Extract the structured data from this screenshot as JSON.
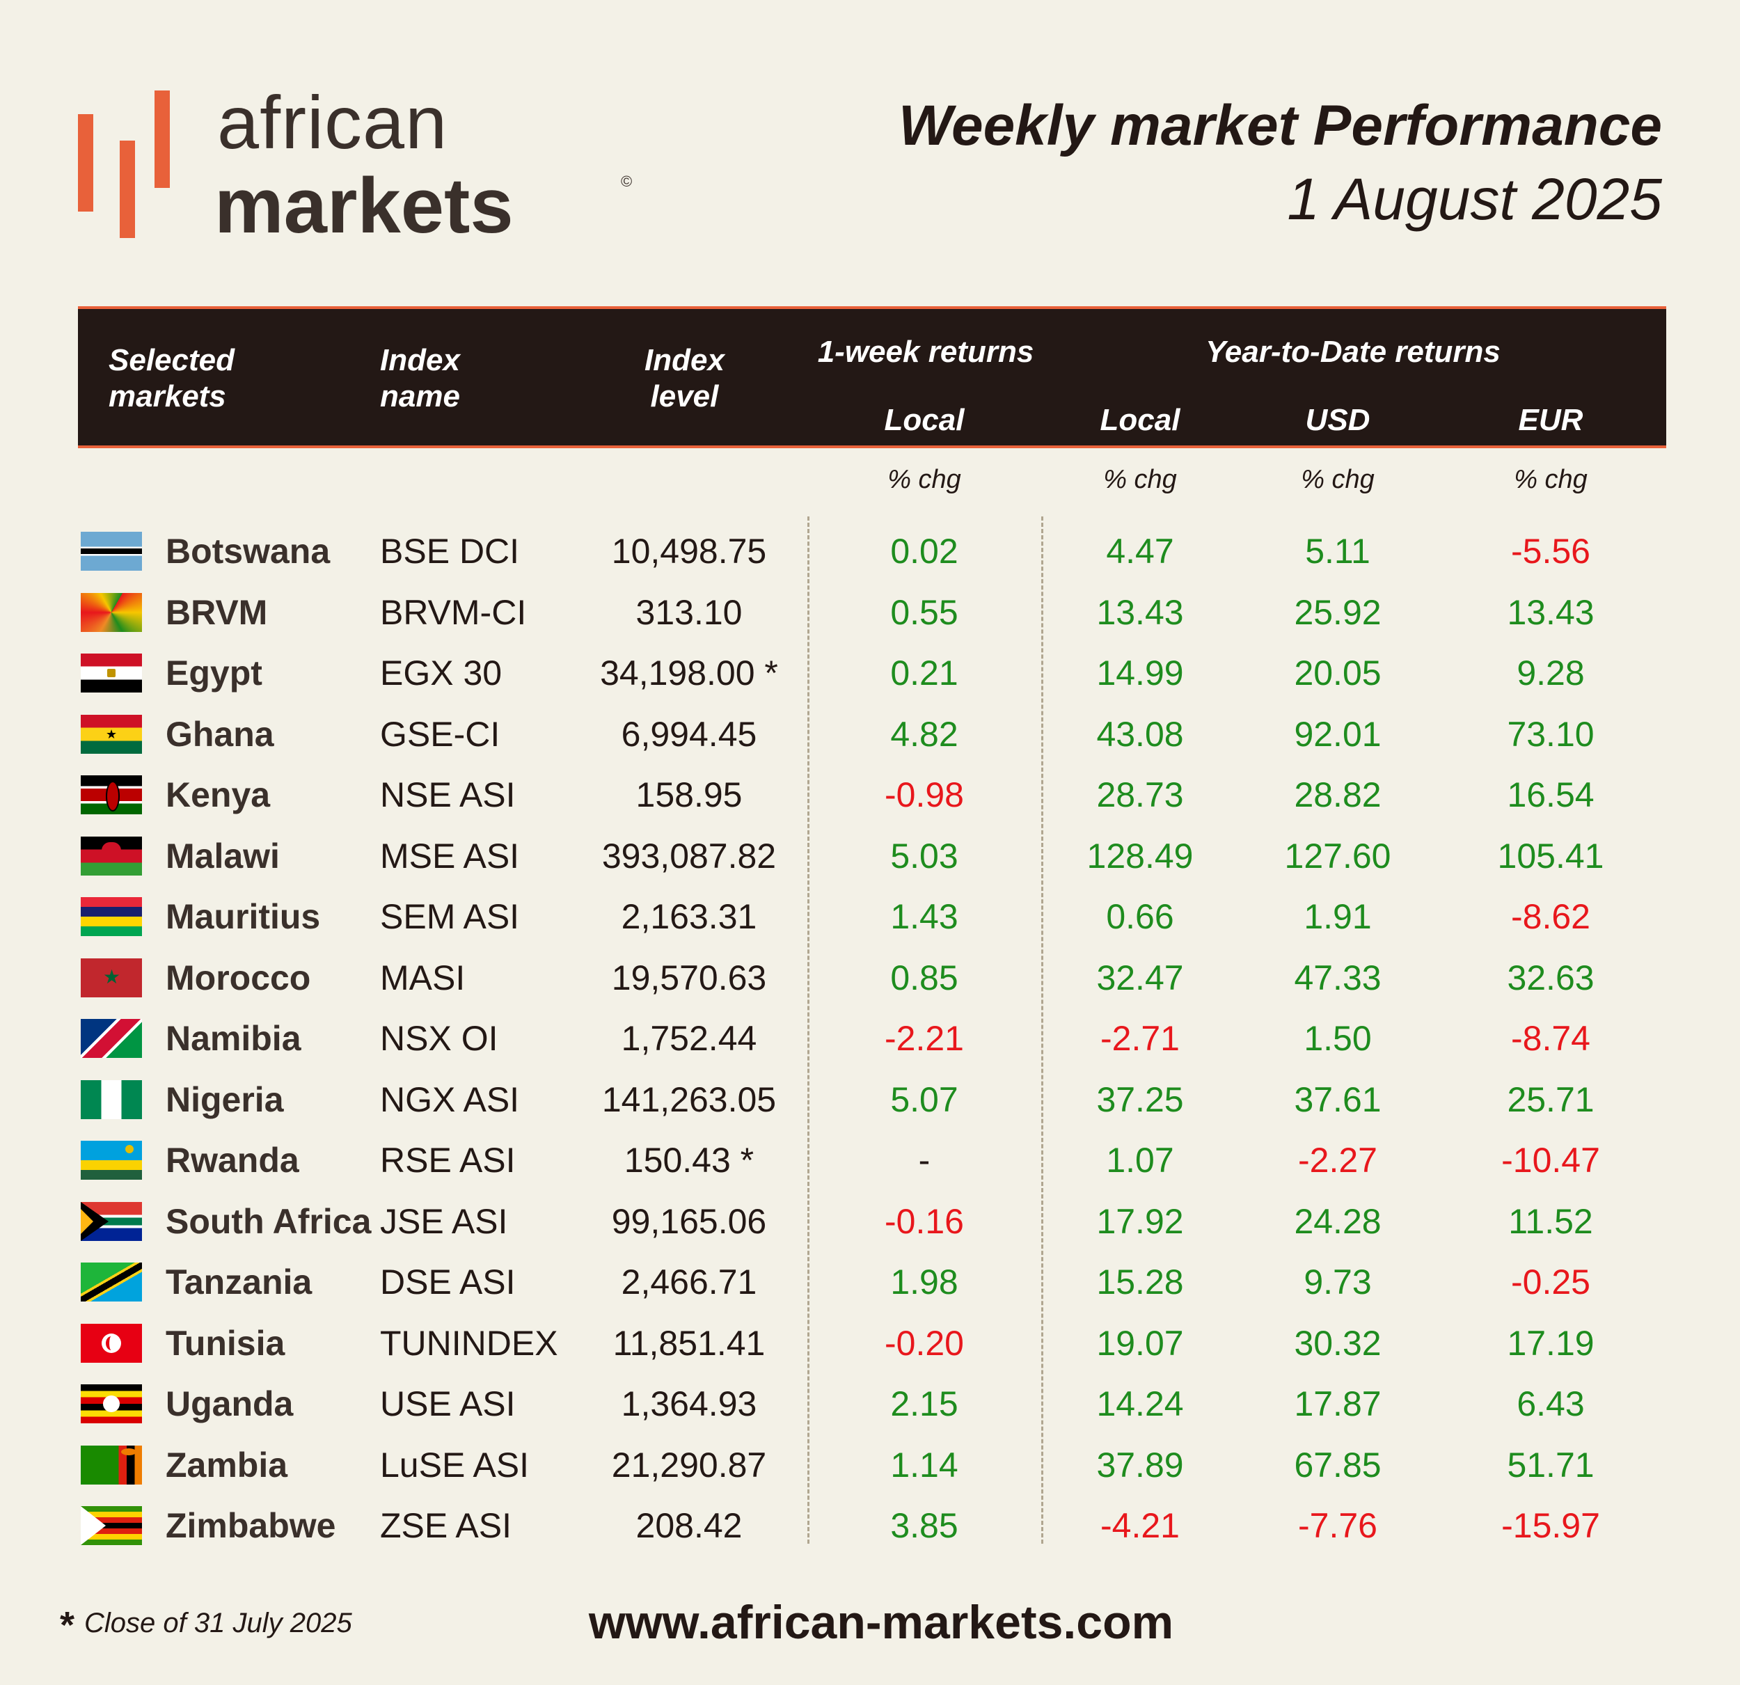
{
  "logo": {
    "line1": "african",
    "line2": "markets",
    "mark": "©"
  },
  "header": {
    "title": "Weekly market Performance",
    "date": "1 August 2025"
  },
  "table_header": {
    "col_market": [
      "Selected",
      "markets"
    ],
    "col_index_name": [
      "Index",
      "name"
    ],
    "col_index_level": [
      "Index",
      "level"
    ],
    "group_week": "1-week returns",
    "group_ytd": "Year-to-Date returns",
    "week_local": "Local",
    "ytd_local": "Local",
    "ytd_usd": "USD",
    "ytd_eur": "EUR",
    "unit": "% chg"
  },
  "colors": {
    "positive": "#1e8c1e",
    "negative": "#e8171c",
    "accent": "#e8613a",
    "header_bg": "#231815"
  },
  "rows": [
    {
      "flag": "botswana-flag-icon",
      "country": "Botswana",
      "index": "BSE DCI",
      "level": "10,498.75",
      "week": "0.02",
      "ytd_local": "4.47",
      "ytd_usd": "5.11",
      "ytd_eur": "-5.56"
    },
    {
      "flag": "brvm-flag-icon",
      "country": "BRVM",
      "index": "BRVM-CI",
      "level": "313.10",
      "week": "0.55",
      "ytd_local": "13.43",
      "ytd_usd": "25.92",
      "ytd_eur": "13.43"
    },
    {
      "flag": "egypt-flag-icon",
      "country": "Egypt",
      "index": "EGX 30",
      "level": "34,198.00 *",
      "week": "0.21",
      "ytd_local": "14.99",
      "ytd_usd": "20.05",
      "ytd_eur": "9.28"
    },
    {
      "flag": "ghana-flag-icon",
      "country": "Ghana",
      "index": "GSE-CI",
      "level": "6,994.45",
      "week": "4.82",
      "ytd_local": "43.08",
      "ytd_usd": "92.01",
      "ytd_eur": "73.10"
    },
    {
      "flag": "kenya-flag-icon",
      "country": "Kenya",
      "index": "NSE ASI",
      "level": "158.95",
      "week": "-0.98",
      "ytd_local": "28.73",
      "ytd_usd": "28.82",
      "ytd_eur": "16.54"
    },
    {
      "flag": "malawi-flag-icon",
      "country": "Malawi",
      "index": "MSE ASI",
      "level": "393,087.82",
      "week": "5.03",
      "ytd_local": "128.49",
      "ytd_usd": "127.60",
      "ytd_eur": "105.41"
    },
    {
      "flag": "mauritius-flag-icon",
      "country": "Mauritius",
      "index": "SEM ASI",
      "level": "2,163.31",
      "week": "1.43",
      "ytd_local": "0.66",
      "ytd_usd": "1.91",
      "ytd_eur": "-8.62"
    },
    {
      "flag": "morocco-flag-icon",
      "country": "Morocco",
      "index": "MASI",
      "level": "19,570.63",
      "week": "0.85",
      "ytd_local": "32.47",
      "ytd_usd": "47.33",
      "ytd_eur": "32.63"
    },
    {
      "flag": "namibia-flag-icon",
      "country": "Namibia",
      "index": "NSX OI",
      "level": "1,752.44",
      "week": "-2.21",
      "ytd_local": "-2.71",
      "ytd_usd": "1.50",
      "ytd_eur": "-8.74"
    },
    {
      "flag": "nigeria-flag-icon",
      "country": "Nigeria",
      "index": "NGX ASI",
      "level": "141,263.05",
      "week": "5.07",
      "ytd_local": "37.25",
      "ytd_usd": "37.61",
      "ytd_eur": "25.71"
    },
    {
      "flag": "rwanda-flag-icon",
      "country": "Rwanda",
      "index": "RSE ASI",
      "level": "150.43 *",
      "week": "-",
      "ytd_local": "1.07",
      "ytd_usd": "-2.27",
      "ytd_eur": "-10.47"
    },
    {
      "flag": "south-africa-flag-icon",
      "country": "South Africa",
      "index": "JSE ASI",
      "level": "99,165.06",
      "week": "-0.16",
      "ytd_local": "17.92",
      "ytd_usd": "24.28",
      "ytd_eur": "11.52"
    },
    {
      "flag": "tanzania-flag-icon",
      "country": "Tanzania",
      "index": "DSE ASI",
      "level": "2,466.71",
      "week": "1.98",
      "ytd_local": "15.28",
      "ytd_usd": "9.73",
      "ytd_eur": "-0.25"
    },
    {
      "flag": "tunisia-flag-icon",
      "country": "Tunisia",
      "index": "TUNINDEX",
      "level": "11,851.41",
      "week": "-0.20",
      "ytd_local": "19.07",
      "ytd_usd": "30.32",
      "ytd_eur": "17.19"
    },
    {
      "flag": "uganda-flag-icon",
      "country": "Uganda",
      "index": "USE ASI",
      "level": "1,364.93",
      "week": "2.15",
      "ytd_local": "14.24",
      "ytd_usd": "17.87",
      "ytd_eur": "6.43"
    },
    {
      "flag": "zambia-flag-icon",
      "country": "Zambia",
      "index": "LuSE ASI",
      "level": "21,290.87",
      "week": "1.14",
      "ytd_local": "37.89",
      "ytd_usd": "67.85",
      "ytd_eur": "51.71"
    },
    {
      "flag": "zimbabwe-flag-icon",
      "country": "Zimbabwe",
      "index": "ZSE ASI",
      "level": "208.42",
      "week": "3.85",
      "ytd_local": "-4.21",
      "ytd_usd": "-7.76",
      "ytd_eur": "-15.97"
    }
  ],
  "footer": {
    "star": "*",
    "note": "Close of 31 July 2025",
    "website": "www.african-markets.com"
  }
}
